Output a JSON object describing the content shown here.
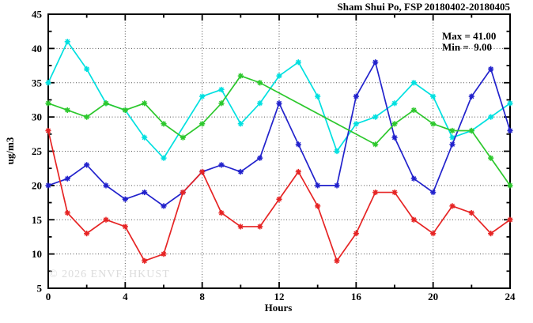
{
  "chart_data": {
    "type": "line",
    "title": "Sham Shui Po, FSP 20180402-20180405",
    "xlabel": "Hours",
    "ylabel": "ug/m3",
    "watermark": "© 2026 ENVF, HKUST",
    "annotation": {
      "max_label": "Max = 41.00",
      "min_label": "Min =  9.00"
    },
    "xlim": [
      0,
      24
    ],
    "ylim": [
      5,
      45
    ],
    "x_major_ticks": [
      0,
      4,
      8,
      12,
      16,
      20,
      24
    ],
    "x_minor_ticks": [
      2,
      6,
      10,
      14,
      18,
      22
    ],
    "y_major_ticks": [
      5,
      10,
      15,
      20,
      25,
      30,
      35,
      40,
      45
    ],
    "y_minor_ticks": [
      7.5,
      12.5,
      17.5,
      22.5,
      27.5,
      32.5,
      37.5,
      42.5
    ],
    "grid": "dotted at major ticks",
    "legend_position": "none",
    "x": [
      0,
      1,
      2,
      3,
      4,
      5,
      6,
      7,
      8,
      9,
      10,
      11,
      12,
      13,
      14,
      15,
      16,
      17,
      18,
      19,
      20,
      21,
      22,
      23,
      24
    ],
    "series": [
      {
        "name": "cyan-series",
        "color": "#00E0E0",
        "values": [
          35,
          41,
          37,
          32,
          31,
          27,
          24,
          null,
          33,
          34,
          29,
          32,
          36,
          38,
          33,
          25,
          29,
          30,
          32,
          35,
          33,
          27,
          28,
          30,
          32
        ]
      },
      {
        "name": "blue-series",
        "color": "#2222CC",
        "values": [
          20,
          21,
          23,
          20,
          18,
          19,
          17,
          19,
          22,
          23,
          22,
          24,
          32,
          26,
          20,
          20,
          33,
          38,
          27,
          21,
          19,
          26,
          33,
          37,
          28
        ]
      },
      {
        "name": "green-series",
        "color": "#2DC82D",
        "values": [
          32,
          31,
          30,
          32,
          31,
          32,
          29,
          27,
          29,
          32,
          36,
          35,
          null,
          null,
          null,
          null,
          null,
          26,
          29,
          31,
          29,
          28,
          28,
          24,
          20
        ]
      },
      {
        "name": "red-series",
        "color": "#E62424",
        "values": [
          28,
          16,
          13,
          15,
          14,
          9,
          10,
          19,
          22,
          16,
          14,
          14,
          18,
          22,
          17,
          9,
          13,
          19,
          19,
          15,
          13,
          17,
          16,
          13,
          15
        ]
      }
    ]
  }
}
